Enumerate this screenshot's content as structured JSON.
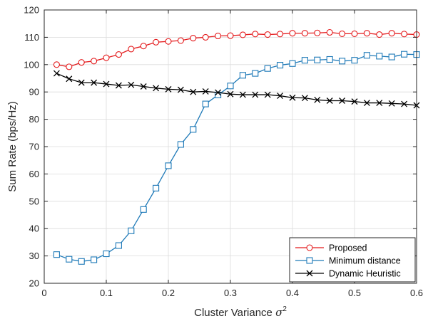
{
  "chart_data": {
    "type": "line",
    "xlabel": "Cluster Variance",
    "xlabel_symbol": "σ",
    "xlabel_superscript": "2",
    "ylabel": "Sum Rate (bps/Hz)",
    "xlim": [
      0,
      0.6
    ],
    "ylim": [
      20,
      120
    ],
    "x_ticks": [
      "0",
      "0.1",
      "0.2",
      "0.3",
      "0.4",
      "0.5",
      "0.6"
    ],
    "y_ticks": [
      "20",
      "30",
      "40",
      "50",
      "60",
      "70",
      "80",
      "90",
      "100",
      "110",
      "120"
    ],
    "grid": true,
    "legend_position": "bottom-right",
    "x": [
      0.02,
      0.04,
      0.06,
      0.08,
      0.1,
      0.12,
      0.14,
      0.16,
      0.18,
      0.2,
      0.22,
      0.24,
      0.26,
      0.28,
      0.3,
      0.32,
      0.34,
      0.36,
      0.38,
      0.4,
      0.42,
      0.44,
      0.46,
      0.48,
      0.5,
      0.52,
      0.54,
      0.56,
      0.58,
      0.6
    ],
    "series": [
      {
        "name": "Proposed",
        "color": "#e41a1c",
        "marker": "circle",
        "values": [
          100.0,
          99.2,
          100.8,
          101.3,
          102.5,
          103.7,
          105.7,
          106.8,
          108.2,
          108.5,
          108.8,
          109.7,
          110.0,
          110.5,
          110.6,
          110.9,
          111.2,
          111.0,
          111.2,
          111.5,
          111.5,
          111.6,
          111.8,
          111.3,
          111.3,
          111.5,
          111.0,
          111.5,
          111.2,
          111.0
        ]
      },
      {
        "name": "Minimum distance",
        "color": "#1f7ab8",
        "marker": "square",
        "values": [
          30.5,
          28.8,
          28.0,
          28.6,
          30.8,
          33.8,
          39.2,
          47.0,
          54.8,
          63.0,
          70.8,
          76.3,
          85.6,
          88.9,
          92.2,
          96.1,
          96.8,
          98.6,
          99.8,
          100.4,
          101.6,
          101.7,
          101.9,
          101.3,
          101.6,
          103.4,
          103.1,
          102.8,
          103.8,
          103.7
        ]
      },
      {
        "name": "Dynamic Heuristic",
        "color": "#000000",
        "marker": "x",
        "values": [
          96.8,
          94.8,
          93.4,
          93.4,
          92.9,
          92.4,
          92.6,
          92.0,
          91.4,
          91.0,
          90.8,
          90.0,
          90.2,
          89.8,
          89.2,
          89.0,
          89.0,
          89.0,
          88.6,
          87.9,
          87.8,
          87.1,
          86.8,
          86.8,
          86.5,
          86.0,
          86.0,
          85.8,
          85.6,
          85.1
        ]
      }
    ]
  }
}
